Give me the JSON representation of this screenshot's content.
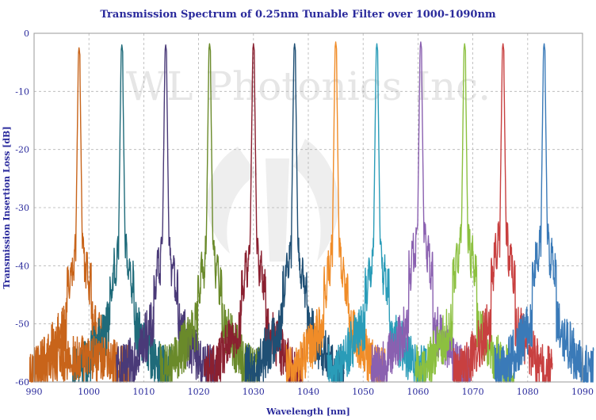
{
  "chart_data": {
    "type": "line",
    "title": "Transmission Spectrum of 0.25nm Tunable Filter over 1000-1090nm",
    "xlabel": "Wavelength [nm]",
    "ylabel": "Transmission Insertion Loss [dB]",
    "xlim": [
      990,
      1090
    ],
    "ylim": [
      -60,
      0
    ],
    "xticks": [
      990,
      1000,
      1010,
      1020,
      1030,
      1040,
      1050,
      1060,
      1070,
      1080,
      1090
    ],
    "yticks": [
      0,
      -10,
      -20,
      -30,
      -40,
      -50,
      -60
    ],
    "xtick_labels": [
      "990",
      "1000",
      "1010",
      "1020",
      "1030",
      "1040",
      "1050",
      "1060",
      "1070",
      "1080",
      "1090"
    ],
    "ytick_labels": [
      "0",
      "-10",
      "-20",
      "-30",
      "-40",
      "-50",
      "-60"
    ],
    "grid": true,
    "watermark": "WL Photonics Inc.",
    "series": [
      {
        "name": "998 nm",
        "peak_nm": 998.2,
        "peak_db": -2.5,
        "color": "#c8641a"
      },
      {
        "name": "1006 nm",
        "peak_nm": 1006.0,
        "peak_db": -2.0,
        "color": "#1f6b7a"
      },
      {
        "name": "1014 nm",
        "peak_nm": 1014.0,
        "peak_db": -2.0,
        "color": "#4a3a78"
      },
      {
        "name": "1022 nm",
        "peak_nm": 1022.0,
        "peak_db": -1.8,
        "color": "#6a8a2a"
      },
      {
        "name": "1030 nm",
        "peak_nm": 1030.0,
        "peak_db": -1.8,
        "color": "#8a2030"
      },
      {
        "name": "1037 nm",
        "peak_nm": 1037.5,
        "peak_db": -1.8,
        "color": "#1f4f74"
      },
      {
        "name": "1045 nm",
        "peak_nm": 1045.0,
        "peak_db": -1.5,
        "color": "#f08c28"
      },
      {
        "name": "1052 nm",
        "peak_nm": 1052.5,
        "peak_db": -1.8,
        "color": "#2a9cb8"
      },
      {
        "name": "1060 nm",
        "peak_nm": 1060.5,
        "peak_db": -1.5,
        "color": "#8a60b0"
      },
      {
        "name": "1068 nm",
        "peak_nm": 1068.5,
        "peak_db": -1.8,
        "color": "#8cc040"
      },
      {
        "name": "1075 nm",
        "peak_nm": 1075.5,
        "peak_db": -1.8,
        "color": "#c84040"
      },
      {
        "name": "1083 nm",
        "peak_nm": 1083.0,
        "peak_db": -1.8,
        "color": "#3a7ab8"
      }
    ]
  }
}
